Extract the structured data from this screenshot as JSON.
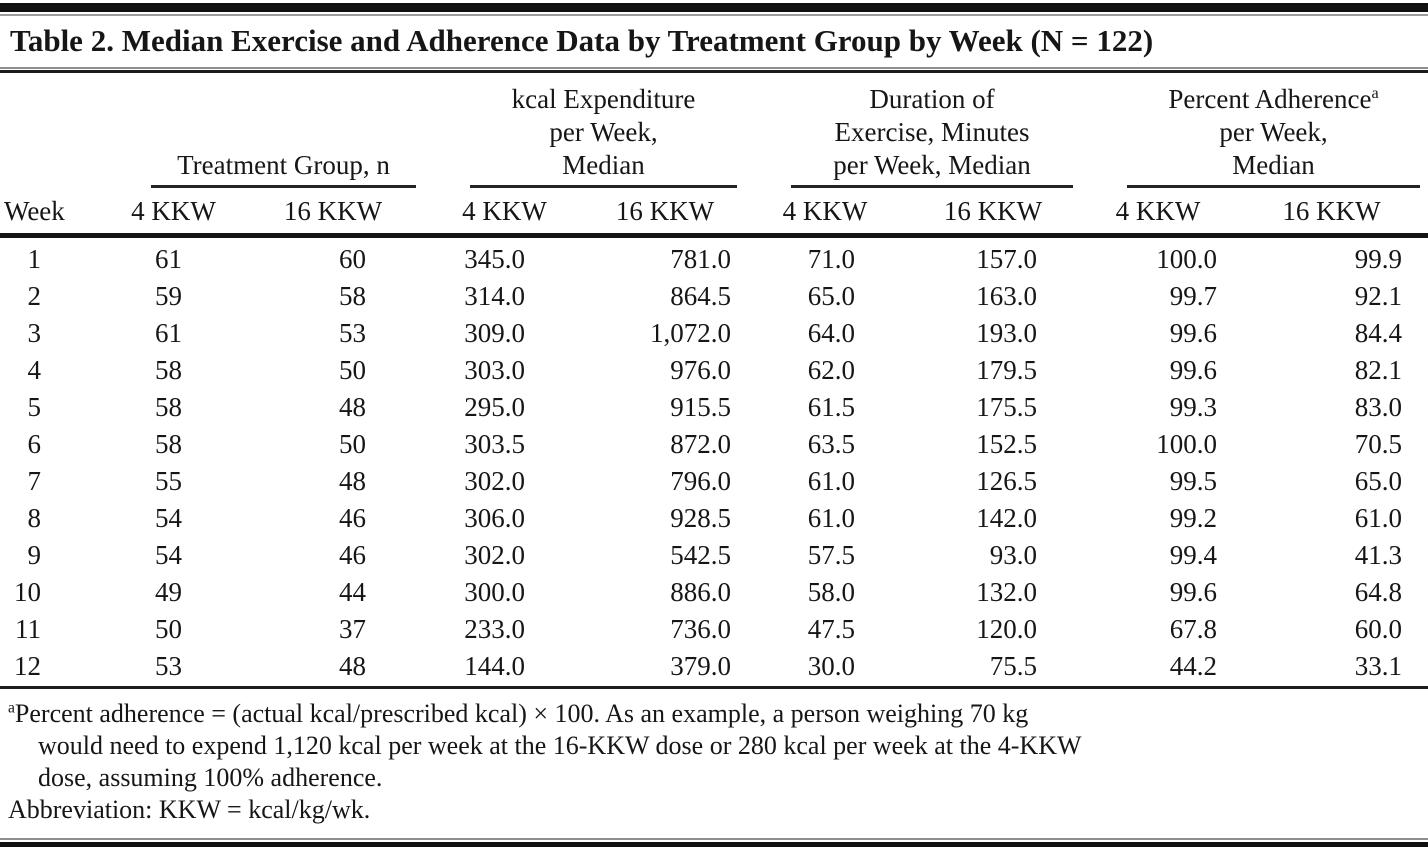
{
  "title": "Table 2. Median Exercise and Adherence Data by Treatment Group by Week (N = 122)",
  "table": {
    "groups": [
      {
        "lines": [
          "Treatment Group, n"
        ]
      },
      {
        "lines": [
          "kcal Expenditure",
          "per Week,",
          "Median"
        ]
      },
      {
        "lines": [
          "Duration of",
          "Exercise, Minutes",
          "per Week, Median"
        ]
      },
      {
        "lines": [
          "Percent Adherence",
          "per Week,",
          "Median"
        ],
        "sup": "a"
      }
    ],
    "subheaders": {
      "week": "Week",
      "dose_low": "4 KKW",
      "dose_high": "16 KKW"
    },
    "rows": [
      [
        "1",
        "61",
        "60",
        "345.0",
        "781.0",
        "71.0",
        "157.0",
        "100.0",
        "99.9"
      ],
      [
        "2",
        "59",
        "58",
        "314.0",
        "864.5",
        "65.0",
        "163.0",
        "99.7",
        "92.1"
      ],
      [
        "3",
        "61",
        "53",
        "309.0",
        "1,072.0",
        "64.0",
        "193.0",
        "99.6",
        "84.4"
      ],
      [
        "4",
        "58",
        "50",
        "303.0",
        "976.0",
        "62.0",
        "179.5",
        "99.6",
        "82.1"
      ],
      [
        "5",
        "58",
        "48",
        "295.0",
        "915.5",
        "61.5",
        "175.5",
        "99.3",
        "83.0"
      ],
      [
        "6",
        "58",
        "50",
        "303.5",
        "872.0",
        "63.5",
        "152.5",
        "100.0",
        "70.5"
      ],
      [
        "7",
        "55",
        "48",
        "302.0",
        "796.0",
        "61.0",
        "126.5",
        "99.5",
        "65.0"
      ],
      [
        "8",
        "54",
        "46",
        "306.0",
        "928.5",
        "61.0",
        "142.0",
        "99.2",
        "61.0"
      ],
      [
        "9",
        "54",
        "46",
        "302.0",
        "542.5",
        "57.5",
        "93.0",
        "99.4",
        "41.3"
      ],
      [
        "10",
        "49",
        "44",
        "300.0",
        "886.0",
        "58.0",
        "132.0",
        "99.6",
        "64.8"
      ],
      [
        "11",
        "50",
        "37",
        "233.0",
        "736.0",
        "47.5",
        "120.0",
        "67.8",
        "60.0"
      ],
      [
        "12",
        "53",
        "48",
        "144.0",
        "379.0",
        "30.0",
        "75.5",
        "44.2",
        "33.1"
      ]
    ]
  },
  "footnotes": {
    "a_sup": "a",
    "a_line1": "Percent adherence = (actual kcal/prescribed kcal) × 100. As an example, a person weighing 70 kg",
    "a_line2": "would need to expend 1,120 kcal per week at the 16-KKW dose or 280 kcal per week at the 4-KKW",
    "a_line3": "dose, assuming 100% adherence.",
    "abbreviation": "Abbreviation: KKW = kcal/kg/wk."
  }
}
